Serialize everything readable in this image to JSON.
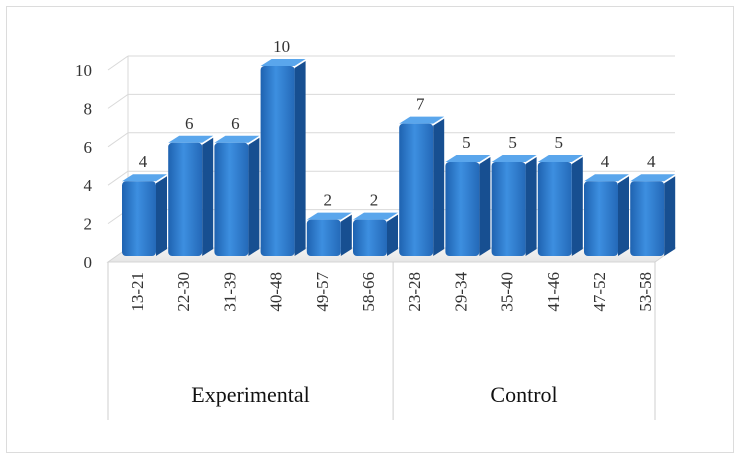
{
  "chart_data": {
    "type": "bar",
    "groups": [
      {
        "name": "Experimental",
        "categories": [
          "13-21",
          "22-30",
          "31-39",
          "40-48",
          "49-57",
          "58-66"
        ],
        "values": [
          4,
          6,
          6,
          10,
          2,
          2
        ]
      },
      {
        "name": "Control",
        "categories": [
          "23-28",
          "29-34",
          "35-40",
          "41-46",
          "47-52",
          "53-58"
        ],
        "values": [
          7,
          5,
          5,
          5,
          4,
          4
        ]
      }
    ],
    "ylim": [
      0,
      10
    ],
    "yticks": [
      0,
      2,
      4,
      6,
      8,
      10
    ],
    "title": "",
    "xlabel": "",
    "ylabel": "",
    "grid": true,
    "bar_color": "#2f7fd0",
    "style": "3d-column"
  }
}
